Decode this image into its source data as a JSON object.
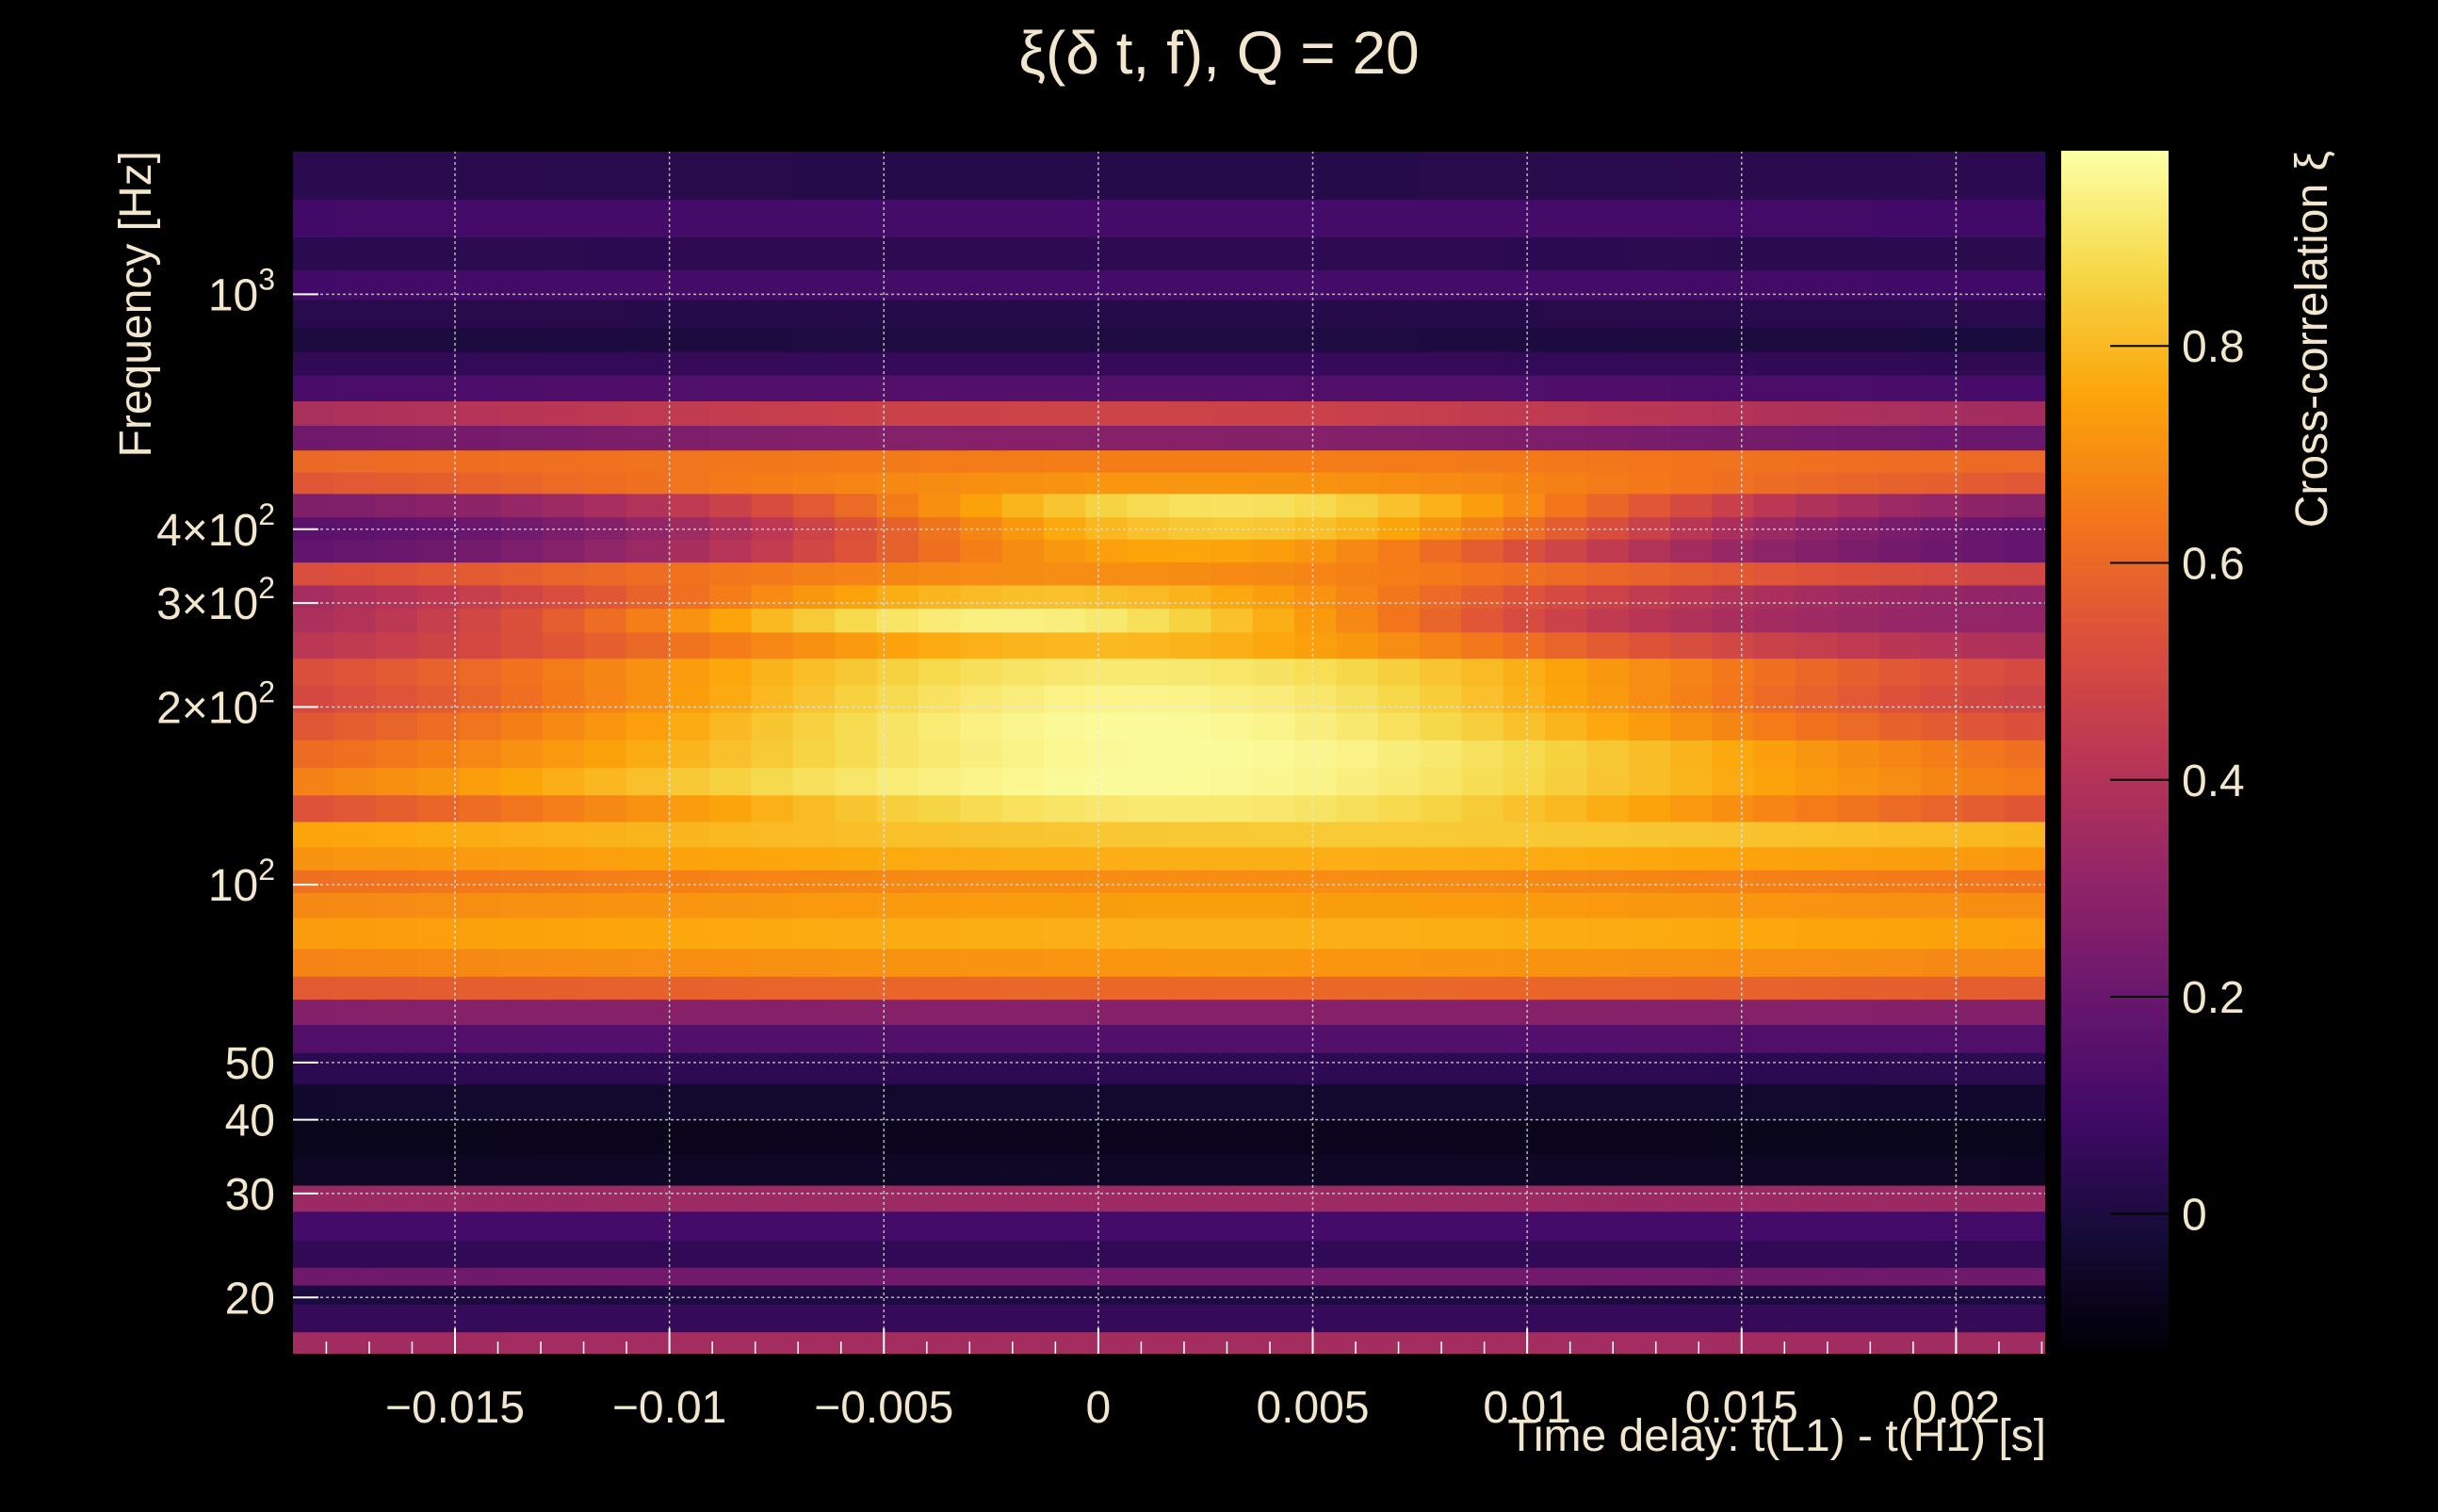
{
  "chart_data": {
    "type": "heatmap",
    "title": "ξ(δ t, f), Q = 20",
    "xlabel": "Time delay: t(L1) - t(H1) [s]",
    "ylabel": "Frequency [Hz]",
    "colorbar_label": "Cross-correlation ξ",
    "colormap": "inferno",
    "colors": {
      "background": "#000000",
      "text": "#f2e6cc",
      "grid": "#e8e8e8"
    },
    "x_scale": "linear",
    "y_scale": "log",
    "xlim": [
      -0.0188,
      0.0221
    ],
    "ylim": [
      16,
      1750
    ],
    "zlim": [
      -0.13,
      0.98
    ],
    "grid": true,
    "x_ticks": [
      {
        "value": -0.015,
        "label": "−0.015"
      },
      {
        "value": -0.01,
        "label": "−0.01"
      },
      {
        "value": -0.005,
        "label": "−0.005"
      },
      {
        "value": 0,
        "label": "0"
      },
      {
        "value": 0.005,
        "label": "0.005"
      },
      {
        "value": 0.01,
        "label": "0.01"
      },
      {
        "value": 0.015,
        "label": "0.015"
      },
      {
        "value": 0.02,
        "label": "0.02"
      }
    ],
    "y_ticks": [
      {
        "value": 20,
        "label": "20"
      },
      {
        "value": 30,
        "label": "30"
      },
      {
        "value": 40,
        "label": "40"
      },
      {
        "value": 50,
        "label": "50"
      },
      {
        "value": 100,
        "base": "10",
        "exp": "2"
      },
      {
        "value": 200,
        "base": "2×10",
        "exp": "2"
      },
      {
        "value": 300,
        "base": "3×10",
        "exp": "2"
      },
      {
        "value": 400,
        "base": "4×10",
        "exp": "2"
      },
      {
        "value": 1000,
        "base": "10",
        "exp": "3"
      }
    ],
    "z_ticks": [
      {
        "value": 0,
        "label": "0"
      },
      {
        "value": 0.2,
        "label": "0.2"
      },
      {
        "value": 0.4,
        "label": "0.4"
      },
      {
        "value": 0.6,
        "label": "0.6"
      },
      {
        "value": 0.8,
        "label": "0.8"
      }
    ],
    "time_bins": 42,
    "freq_bands": [
      {
        "f": [
          16,
          17.5
        ],
        "edge": 0.32,
        "center": 0.36,
        "peak_dt": 0.0,
        "width": 0.03
      },
      {
        "f": [
          17.5,
          19.5
        ],
        "edge": 0.04,
        "center": 0.06,
        "peak_dt": 0.0,
        "width": 0.03
      },
      {
        "f": [
          19.5,
          21
        ],
        "edge": -0.02,
        "center": 0.0,
        "peak_dt": 0.0,
        "width": 0.03
      },
      {
        "f": [
          21,
          22.5
        ],
        "edge": 0.2,
        "center": 0.22,
        "peak_dt": 0.0,
        "width": 0.03
      },
      {
        "f": [
          22.5,
          25
        ],
        "edge": 0.04,
        "center": 0.05,
        "peak_dt": 0.0,
        "width": 0.03
      },
      {
        "f": [
          25,
          28
        ],
        "edge": 0.08,
        "center": 0.1,
        "peak_dt": 0.0,
        "width": 0.03
      },
      {
        "f": [
          28,
          31
        ],
        "edge": 0.3,
        "center": 0.34,
        "peak_dt": 0.0,
        "width": 0.03
      },
      {
        "f": [
          31,
          35
        ],
        "edge": -0.08,
        "center": -0.06,
        "peak_dt": 0.0,
        "width": 0.03
      },
      {
        "f": [
          35,
          40
        ],
        "edge": -0.1,
        "center": -0.08,
        "peak_dt": 0.0,
        "width": 0.03
      },
      {
        "f": [
          40,
          46
        ],
        "edge": -0.06,
        "center": -0.04,
        "peak_dt": 0.0,
        "width": 0.03
      },
      {
        "f": [
          46,
          52
        ],
        "edge": 0.02,
        "center": 0.04,
        "peak_dt": 0.0,
        "width": 0.03
      },
      {
        "f": [
          52,
          58
        ],
        "edge": 0.12,
        "center": 0.14,
        "peak_dt": 0.0,
        "width": 0.03
      },
      {
        "f": [
          58,
          64
        ],
        "edge": 0.24,
        "center": 0.28,
        "peak_dt": 0.0,
        "width": 0.03
      },
      {
        "f": [
          64,
          70
        ],
        "edge": 0.5,
        "center": 0.6,
        "peak_dt": 0.003,
        "width": 0.022
      },
      {
        "f": [
          70,
          78
        ],
        "edge": 0.6,
        "center": 0.72,
        "peak_dt": 0.003,
        "width": 0.022
      },
      {
        "f": [
          78,
          88
        ],
        "edge": 0.66,
        "center": 0.78,
        "peak_dt": 0.003,
        "width": 0.022
      },
      {
        "f": [
          88,
          97
        ],
        "edge": 0.6,
        "center": 0.74,
        "peak_dt": 0.003,
        "width": 0.022
      },
      {
        "f": [
          97,
          106
        ],
        "edge": 0.5,
        "center": 0.7,
        "peak_dt": 0.003,
        "width": 0.022
      },
      {
        "f": [
          106,
          116
        ],
        "edge": 0.6,
        "center": 0.78,
        "peak_dt": 0.003,
        "width": 0.022
      },
      {
        "f": [
          116,
          128
        ],
        "edge": 0.7,
        "center": 0.84,
        "peak_dt": 0.006,
        "width": 0.018
      },
      {
        "f": [
          128,
          142
        ],
        "edge": 0.42,
        "center": 0.92,
        "peak_dt": 0.002,
        "width": 0.012
      },
      {
        "f": [
          142,
          158
        ],
        "edge": 0.56,
        "center": 0.97,
        "peak_dt": 0.001,
        "width": 0.012
      },
      {
        "f": [
          158,
          176
        ],
        "edge": 0.5,
        "center": 0.97,
        "peak_dt": 0.002,
        "width": 0.012
      },
      {
        "f": [
          176,
          196
        ],
        "edge": 0.44,
        "center": 0.97,
        "peak_dt": 0.001,
        "width": 0.011
      },
      {
        "f": [
          196,
          218
        ],
        "edge": 0.38,
        "center": 0.95,
        "peak_dt": 0.001,
        "width": 0.011
      },
      {
        "f": [
          218,
          242
        ],
        "edge": 0.42,
        "center": 0.92,
        "peak_dt": 0.001,
        "width": 0.011
      },
      {
        "f": [
          242,
          268
        ],
        "edge": 0.34,
        "center": 0.8,
        "peak_dt": 0.0,
        "width": 0.01
      },
      {
        "f": [
          268,
          294
        ],
        "edge": 0.3,
        "center": 0.94,
        "peak_dt": -0.002,
        "width": 0.008
      },
      {
        "f": [
          294,
          322
        ],
        "edge": 0.28,
        "center": 0.82,
        "peak_dt": -0.001,
        "width": 0.009
      },
      {
        "f": [
          322,
          352
        ],
        "edge": 0.44,
        "center": 0.7,
        "peak_dt": 0.0,
        "width": 0.012
      },
      {
        "f": [
          352,
          385
        ],
        "edge": 0.16,
        "center": 0.76,
        "peak_dt": 0.002,
        "width": 0.008
      },
      {
        "f": [
          385,
          420
        ],
        "edge": 0.14,
        "center": 0.84,
        "peak_dt": 0.003,
        "width": 0.008
      },
      {
        "f": [
          420,
          460
        ],
        "edge": 0.24,
        "center": 0.9,
        "peak_dt": 0.003,
        "width": 0.008
      },
      {
        "f": [
          460,
          500
        ],
        "edge": 0.5,
        "center": 0.72,
        "peak_dt": 0.002,
        "width": 0.012
      },
      {
        "f": [
          500,
          545
        ],
        "edge": 0.56,
        "center": 0.66,
        "peak_dt": 0.002,
        "width": 0.016
      },
      {
        "f": [
          545,
          600
        ],
        "edge": 0.16,
        "center": 0.28,
        "peak_dt": 0.0,
        "width": 0.015
      },
      {
        "f": [
          600,
          660
        ],
        "edge": 0.3,
        "center": 0.48,
        "peak_dt": 0.0,
        "width": 0.014
      },
      {
        "f": [
          660,
          730
        ],
        "edge": 0.06,
        "center": 0.14,
        "peak_dt": 0.0,
        "width": 0.02
      },
      {
        "f": [
          730,
          800
        ],
        "edge": 0.02,
        "center": 0.06,
        "peak_dt": 0.0,
        "width": 0.02
      },
      {
        "f": [
          800,
          880
        ],
        "edge": -0.02,
        "center": 0.0,
        "peak_dt": 0.0,
        "width": 0.02
      },
      {
        "f": [
          880,
          980
        ],
        "edge": 0.04,
        "center": 0.02,
        "peak_dt": 0.0,
        "width": 0.02
      },
      {
        "f": [
          980,
          1100
        ],
        "edge": 0.08,
        "center": 0.1,
        "peak_dt": 0.0,
        "width": 0.02
      },
      {
        "f": [
          1100,
          1250
        ],
        "edge": 0.02,
        "center": 0.04,
        "peak_dt": 0.0,
        "width": 0.02
      },
      {
        "f": [
          1250,
          1450
        ],
        "edge": 0.08,
        "center": 0.1,
        "peak_dt": 0.0,
        "width": 0.02
      },
      {
        "f": [
          1450,
          1750
        ],
        "edge": 0.06,
        "center": 0.02,
        "peak_dt": 0.0,
        "width": 0.02
      }
    ]
  }
}
